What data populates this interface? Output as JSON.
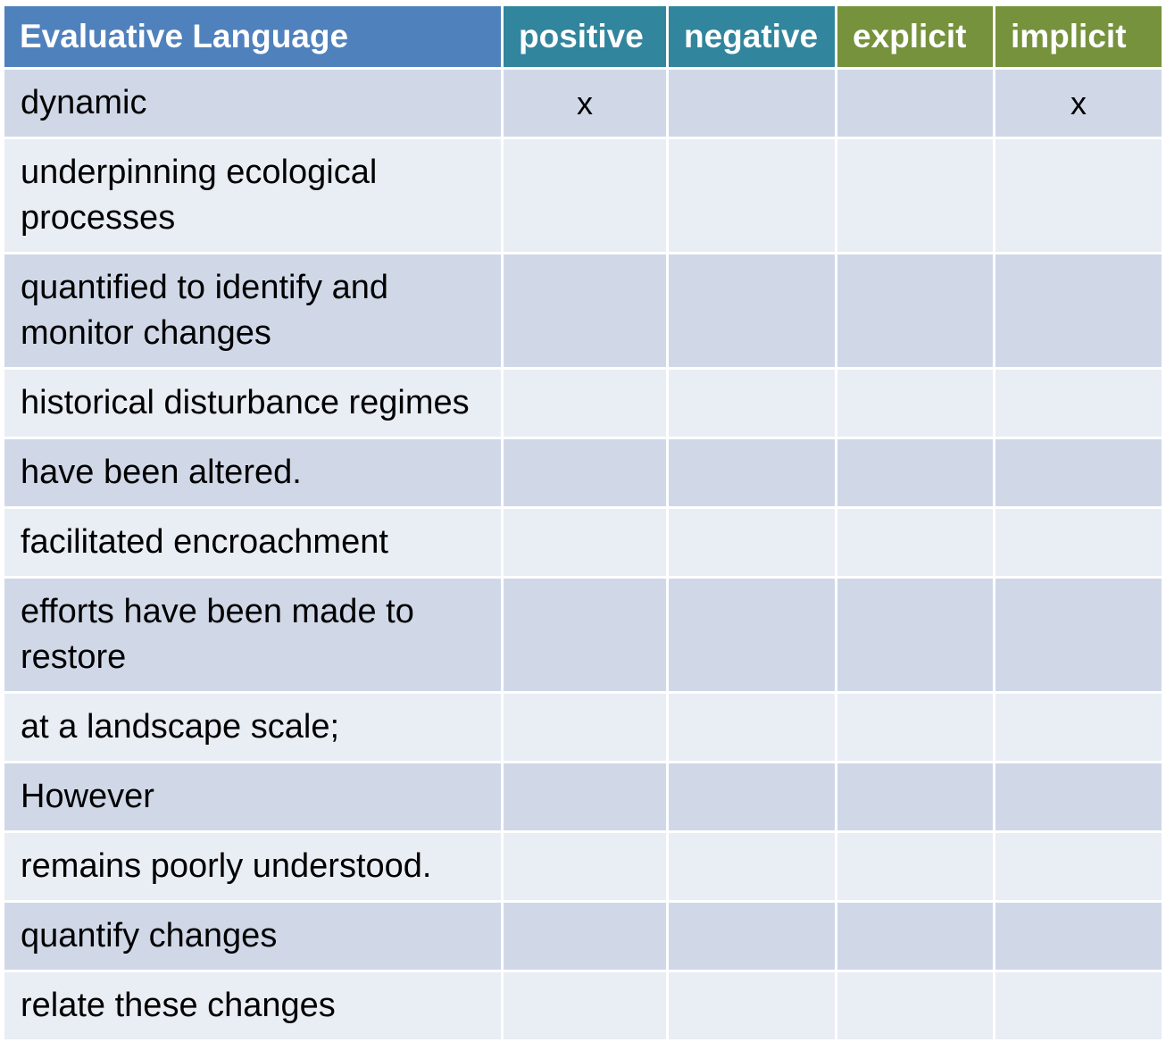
{
  "header": {
    "label": "Evaluative Language",
    "positive": "positive",
    "negative": "negative",
    "explicit": "explicit",
    "implicit": "implicit"
  },
  "colors": {
    "header_label": "#4f81bd",
    "header_teal": "#31859c",
    "header_green": "#76923c",
    "row_dark": "#d0d8e8",
    "row_light": "#e9edf4"
  },
  "rows": [
    {
      "phrase": "dynamic",
      "positive": "x",
      "negative": "",
      "explicit": "",
      "implicit": "x"
    },
    {
      "phrase": "underpinning ecological processes",
      "positive": "",
      "negative": "",
      "explicit": "",
      "implicit": ""
    },
    {
      "phrase": "quantified to identify and monitor changes",
      "positive": "",
      "negative": "",
      "explicit": "",
      "implicit": ""
    },
    {
      "phrase": "historical disturbance regimes",
      "positive": "",
      "negative": "",
      "explicit": "",
      "implicit": ""
    },
    {
      "phrase": "have been altered.",
      "positive": "",
      "negative": "",
      "explicit": "",
      "implicit": ""
    },
    {
      "phrase": "facilitated encroachment",
      "positive": "",
      "negative": "",
      "explicit": "",
      "implicit": ""
    },
    {
      "phrase": "efforts have been made to restore",
      "positive": "",
      "negative": "",
      "explicit": "",
      "implicit": ""
    },
    {
      "phrase": "at a landscape scale;",
      "positive": "",
      "negative": "",
      "explicit": "",
      "implicit": ""
    },
    {
      "phrase": "However",
      "positive": "",
      "negative": "",
      "explicit": "",
      "implicit": ""
    },
    {
      "phrase": "remains poorly understood.",
      "positive": "",
      "negative": "",
      "explicit": "",
      "implicit": ""
    },
    {
      "phrase": "quantify changes",
      "positive": "",
      "negative": "",
      "explicit": "",
      "implicit": ""
    },
    {
      "phrase": "relate these changes",
      "positive": "",
      "negative": "",
      "explicit": "",
      "implicit": ""
    }
  ]
}
